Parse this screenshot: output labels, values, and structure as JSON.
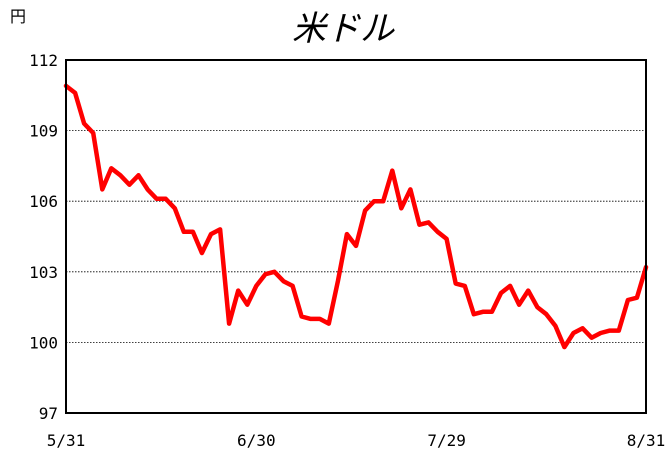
{
  "chart_data": {
    "type": "line",
    "title": "米ドル",
    "unit_label": "円",
    "ylim": [
      97,
      112
    ],
    "yticks": [
      "97",
      "100",
      "103",
      "106",
      "109",
      "112"
    ],
    "xtick_labels": [
      "5/31",
      "6/30",
      "7/29",
      "8/31"
    ],
    "grid": "horizontal dotted",
    "series": [
      {
        "color": "#ff0000",
        "values": [
          110.9,
          110.6,
          109.3,
          108.9,
          106.5,
          107.4,
          107.1,
          106.7,
          107.1,
          106.5,
          106.1,
          106.1,
          105.7,
          104.7,
          104.7,
          103.8,
          104.6,
          104.8,
          100.8,
          102.2,
          101.6,
          102.4,
          102.9,
          103.0,
          102.6,
          102.4,
          101.1,
          101.0,
          101.0,
          100.8,
          102.6,
          104.6,
          104.1,
          105.6,
          106.0,
          106.0,
          107.3,
          105.7,
          106.5,
          105.0,
          105.1,
          104.7,
          104.4,
          102.5,
          102.4,
          101.2,
          101.3,
          101.3,
          102.1,
          102.4,
          101.6,
          102.2,
          101.5,
          101.2,
          100.7,
          99.8,
          100.4,
          100.6,
          100.2,
          100.4,
          100.5,
          100.5,
          101.8,
          101.9,
          103.2
        ]
      }
    ]
  }
}
